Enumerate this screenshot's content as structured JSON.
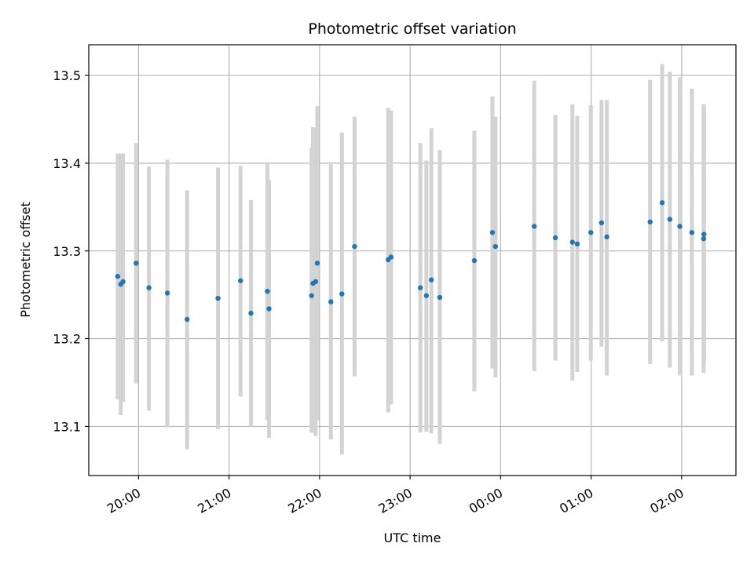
{
  "chart_data": {
    "type": "scatter",
    "title": "Photometric offset variation",
    "xlabel": "UTC time",
    "ylabel": "Photometric offset",
    "x_tick_labels": [
      "20:00",
      "21:00",
      "22:00",
      "23:00",
      "00:00",
      "01:00",
      "02:00"
    ],
    "y_tick_labels": [
      "13.1",
      "13.2",
      "13.3",
      "13.4",
      "13.5"
    ],
    "x_ticks_minutes": [
      0,
      60,
      120,
      180,
      240,
      300,
      360
    ],
    "y_ticks": [
      13.1,
      13.2,
      13.3,
      13.4,
      13.5
    ],
    "xlim_minutes": [
      -33,
      396
    ],
    "ylim": [
      13.044,
      13.535
    ],
    "grid": true,
    "point_color": "#1f77b4",
    "errorbar_color": "#d3d3d3",
    "points": [
      {
        "t": -13.8,
        "y": 13.271,
        "lo": 13.131,
        "hi": 13.411
      },
      {
        "t": -11.8,
        "y": 13.262,
        "lo": 13.113,
        "hi": 13.411
      },
      {
        "t": -10.3,
        "y": 13.265,
        "lo": 13.128,
        "hi": 13.411
      },
      {
        "t": -1.6,
        "y": 13.286,
        "lo": 13.149,
        "hi": 13.423
      },
      {
        "t": 6.9,
        "y": 13.258,
        "lo": 13.118,
        "hi": 13.396
      },
      {
        "t": 19.1,
        "y": 13.252,
        "lo": 13.099,
        "hi": 13.404
      },
      {
        "t": 32.2,
        "y": 13.222,
        "lo": 13.074,
        "hi": 13.369
      },
      {
        "t": 52.7,
        "y": 13.246,
        "lo": 13.097,
        "hi": 13.395
      },
      {
        "t": 67.6,
        "y": 13.266,
        "lo": 13.134,
        "hi": 13.397
      },
      {
        "t": 74.5,
        "y": 13.229,
        "lo": 13.1,
        "hi": 13.358
      },
      {
        "t": 85.4,
        "y": 13.254,
        "lo": 13.107,
        "hi": 13.401
      },
      {
        "t": 86.5,
        "y": 13.234,
        "lo": 13.087,
        "hi": 13.381
      },
      {
        "t": 114.7,
        "y": 13.249,
        "lo": 13.093,
        "hi": 13.418
      },
      {
        "t": 115.6,
        "y": 13.263,
        "lo": 13.093,
        "hi": 13.441
      },
      {
        "t": 117.4,
        "y": 13.265,
        "lo": 13.089,
        "hi": 13.441
      },
      {
        "t": 118.5,
        "y": 13.286,
        "lo": 13.107,
        "hi": 13.465
      },
      {
        "t": 127.5,
        "y": 13.242,
        "lo": 13.085,
        "hi": 13.399
      },
      {
        "t": 134.8,
        "y": 13.251,
        "lo": 13.068,
        "hi": 13.435
      },
      {
        "t": 143.2,
        "y": 13.305,
        "lo": 13.157,
        "hi": 13.453
      },
      {
        "t": 165.5,
        "y": 13.29,
        "lo": 13.116,
        "hi": 13.463
      },
      {
        "t": 167.4,
        "y": 13.293,
        "lo": 13.125,
        "hi": 13.46
      },
      {
        "t": 186.8,
        "y": 13.258,
        "lo": 13.093,
        "hi": 13.423
      },
      {
        "t": 190.8,
        "y": 13.249,
        "lo": 13.094,
        "hi": 13.403
      },
      {
        "t": 194.1,
        "y": 13.267,
        "lo": 13.092,
        "hi": 13.44
      },
      {
        "t": 199.7,
        "y": 13.247,
        "lo": 13.08,
        "hi": 13.415
      },
      {
        "t": 222.6,
        "y": 13.289,
        "lo": 13.14,
        "hi": 13.437
      },
      {
        "t": 234.6,
        "y": 13.321,
        "lo": 13.166,
        "hi": 13.476
      },
      {
        "t": 236.6,
        "y": 13.305,
        "lo": 13.156,
        "hi": 13.453
      },
      {
        "t": 262.3,
        "y": 13.328,
        "lo": 13.163,
        "hi": 13.494
      },
      {
        "t": 276.3,
        "y": 13.315,
        "lo": 13.175,
        "hi": 13.455
      },
      {
        "t": 287.6,
        "y": 13.31,
        "lo": 13.152,
        "hi": 13.467
      },
      {
        "t": 290.8,
        "y": 13.308,
        "lo": 13.162,
        "hi": 13.454
      },
      {
        "t": 299.8,
        "y": 13.321,
        "lo": 13.175,
        "hi": 13.466
      },
      {
        "t": 306.9,
        "y": 13.332,
        "lo": 13.191,
        "hi": 13.472
      },
      {
        "t": 310.4,
        "y": 13.316,
        "lo": 13.158,
        "hi": 13.472
      },
      {
        "t": 339.1,
        "y": 13.333,
        "lo": 13.171,
        "hi": 13.495
      },
      {
        "t": 347.1,
        "y": 13.355,
        "lo": 13.197,
        "hi": 13.513
      },
      {
        "t": 352.2,
        "y": 13.336,
        "lo": 13.167,
        "hi": 13.504
      },
      {
        "t": 358.8,
        "y": 13.328,
        "lo": 13.158,
        "hi": 13.498
      },
      {
        "t": 366.8,
        "y": 13.321,
        "lo": 13.158,
        "hi": 13.485
      },
      {
        "t": 374.6,
        "y": 13.314,
        "lo": 13.161,
        "hi": 13.467
      },
      {
        "t": 374.8,
        "y": 13.319,
        "lo": 13.17,
        "hi": 13.467
      }
    ]
  }
}
